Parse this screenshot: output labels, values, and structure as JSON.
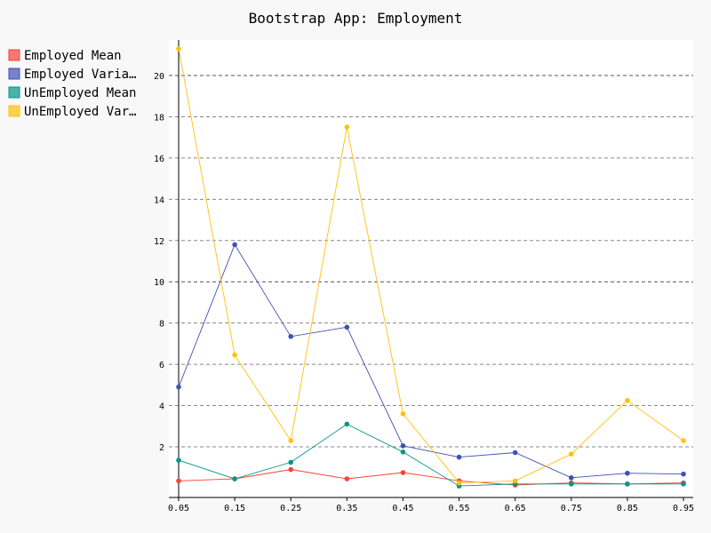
{
  "chart_data": {
    "type": "line",
    "title": "Bootstrap App: Employment",
    "xlabel": "",
    "ylabel": "",
    "x": [
      0.05,
      0.15,
      0.25,
      0.35,
      0.45,
      0.55,
      0.65,
      0.75,
      0.85,
      0.95
    ],
    "x_tick_labels": [
      "0.05",
      "0.15",
      "0.25",
      "0.35",
      "0.45",
      "0.55",
      "0.65",
      "0.75",
      "0.85",
      "0.95"
    ],
    "y_ticks": [
      2,
      4,
      6,
      8,
      10,
      12,
      14,
      16,
      18,
      20
    ],
    "y_major_ticks": [
      10,
      20
    ],
    "ylim": [
      -0.3,
      21.8
    ],
    "grid": true,
    "legend_position": "top-left",
    "series": [
      {
        "name": "Employed Mean",
        "legend_label": "Employed Mean",
        "color": "#f44336",
        "values": [
          0.35,
          0.45,
          0.9,
          0.45,
          0.75,
          0.35,
          0.15,
          0.25,
          0.2,
          0.25
        ]
      },
      {
        "name": "Employed Variance",
        "legend_label": "Employed Varia…",
        "color": "#3f51b5",
        "values": [
          4.9,
          11.8,
          7.35,
          7.8,
          2.05,
          1.5,
          1.72,
          0.5,
          0.72,
          0.68
        ]
      },
      {
        "name": "UnEmployed Mean",
        "legend_label": "UnEmployed Mean",
        "color": "#009688",
        "values": [
          1.35,
          0.45,
          1.25,
          3.1,
          1.75,
          0.1,
          0.2,
          0.2,
          0.2,
          0.2
        ]
      },
      {
        "name": "UnEmployed Variance",
        "legend_label": "UnEmployed Var…",
        "color": "#ffc107",
        "values": [
          21.3,
          6.45,
          2.3,
          17.5,
          3.6,
          0.25,
          0.35,
          1.65,
          4.25,
          2.3
        ]
      }
    ]
  }
}
